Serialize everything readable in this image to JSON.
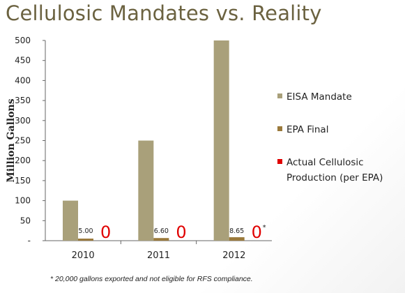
{
  "colors": {
    "title": "#6b6240",
    "eisa": "#a9a07a",
    "epa": "#9b7a3c",
    "actual": "#e00000",
    "axis": "#666666"
  },
  "chart_data": {
    "type": "bar",
    "title": "Cellulosic Mandates vs. Reality",
    "ylabel": "Million Gallons",
    "xlabel": "",
    "ylim": [
      0,
      500
    ],
    "yticks": [
      "-",
      "50",
      "100",
      "150",
      "200",
      "250",
      "300",
      "350",
      "400",
      "450",
      "500"
    ],
    "categories": [
      "2010",
      "2011",
      "2012"
    ],
    "series": [
      {
        "name": "EISA Mandate",
        "values": [
          100,
          250,
          500
        ]
      },
      {
        "name": "EPA Final",
        "values": [
          5.0,
          6.6,
          8.65
        ],
        "data_labels": [
          "5.00",
          "6.60",
          "8.65"
        ]
      },
      {
        "name": "Actual Cellulosic Production (per EPA)",
        "values": [
          0,
          0,
          0
        ],
        "data_labels": [
          "0",
          "0",
          "0*"
        ]
      }
    ],
    "legend_position": "right",
    "grid": false
  },
  "footnote": "* 20,000 gallons exported and not eligible for RFS compliance."
}
